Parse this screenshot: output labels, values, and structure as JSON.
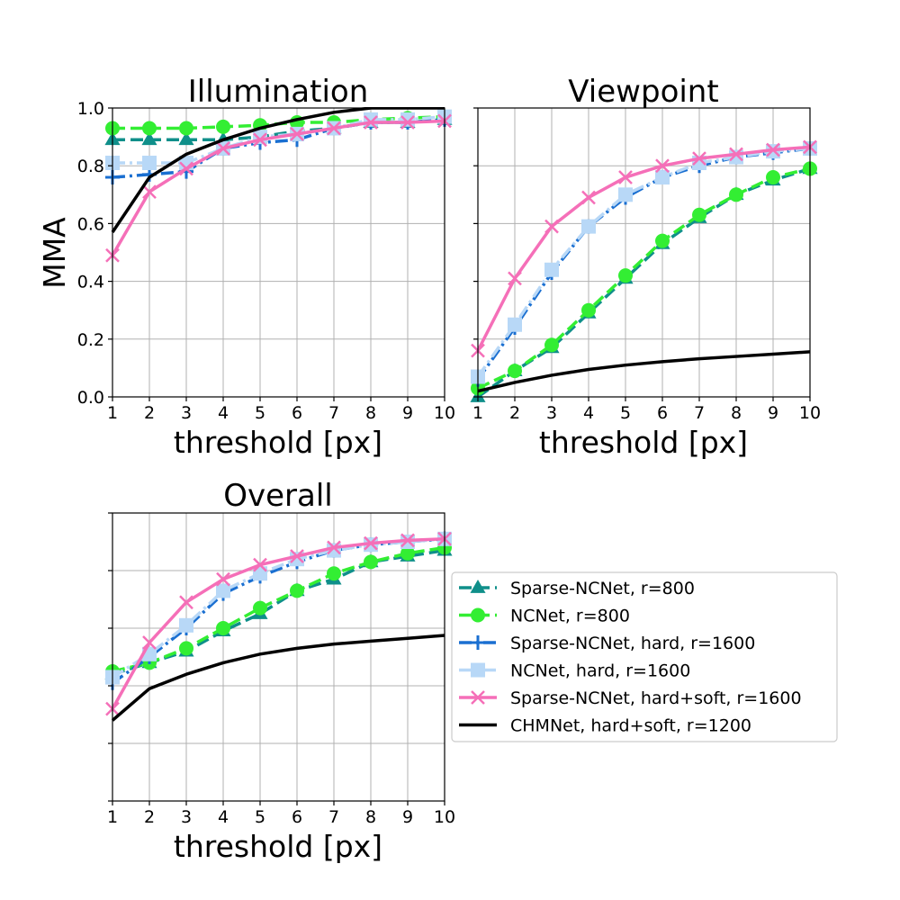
{
  "chart_data": {
    "type": "line",
    "xlabel": "threshold [px]",
    "ylabel": "MMA",
    "x": [
      1,
      2,
      3,
      4,
      5,
      6,
      7,
      8,
      9,
      10
    ],
    "xticks": [
      "1",
      "2",
      "3",
      "4",
      "5",
      "6",
      "7",
      "8",
      "9",
      "10"
    ],
    "yticks": [
      "0.0",
      "0.2",
      "0.4",
      "0.6",
      "0.8",
      "1.0"
    ],
    "xlim": [
      1,
      10
    ],
    "ylim": [
      0,
      1
    ],
    "grid": true,
    "legend_position": "right of Overall panel",
    "series_styles": [
      {
        "name": "Sparse-NCNet, r=800",
        "color": "#0f8f8a",
        "dash": "dashed",
        "marker": "triangle"
      },
      {
        "name": "NCNet, r=800",
        "color": "#33ee33",
        "dash": "dashed",
        "marker": "circle"
      },
      {
        "name": "Sparse-NCNet, hard, r=1600",
        "color": "#1a6fd1",
        "dash": "dashdot",
        "marker": "plus"
      },
      {
        "name": "NCNet, hard, r=1600",
        "color": "#b8d8f7",
        "dash": "dashdot",
        "marker": "square"
      },
      {
        "name": "Sparse-NCNet, hard+soft, r=1600",
        "color": "#f56fb8",
        "dash": "solid",
        "marker": "x"
      },
      {
        "name": "CHMNet, hard+soft, r=1200",
        "color": "#000000",
        "dash": "solid",
        "marker": "none"
      }
    ],
    "panels": [
      {
        "title": "Illumination",
        "series": [
          {
            "name": "Sparse-NCNet, r=800",
            "values": [
              0.89,
              0.89,
              0.89,
              0.89,
              0.9,
              0.92,
              0.93,
              0.95,
              0.95,
              0.96
            ]
          },
          {
            "name": "NCNet, r=800",
            "values": [
              0.93,
              0.93,
              0.93,
              0.935,
              0.94,
              0.95,
              0.95,
              0.96,
              0.965,
              0.97
            ]
          },
          {
            "name": "Sparse-NCNet, hard, r=1600",
            "values": [
              0.76,
              0.77,
              0.78,
              0.86,
              0.88,
              0.89,
              0.93,
              0.95,
              0.95,
              0.96
            ]
          },
          {
            "name": "NCNet, hard, r=1600",
            "values": [
              0.81,
              0.81,
              0.81,
              0.86,
              0.9,
              0.91,
              0.93,
              0.96,
              0.96,
              0.97
            ]
          },
          {
            "name": "Sparse-NCNet, hard+soft, r=1600",
            "values": [
              0.49,
              0.71,
              0.79,
              0.86,
              0.89,
              0.91,
              0.93,
              0.95,
              0.95,
              0.955
            ]
          },
          {
            "name": "CHMNet, hard+soft, r=1200",
            "values": [
              0.57,
              0.76,
              0.84,
              0.89,
              0.93,
              0.96,
              0.985,
              1.0,
              1.0,
              1.0
            ]
          }
        ]
      },
      {
        "title": "Viewpoint",
        "series": [
          {
            "name": "Sparse-NCNet, r=800",
            "values": [
              0.0,
              0.09,
              0.17,
              0.29,
              0.41,
              0.53,
              0.62,
              0.7,
              0.75,
              0.79
            ]
          },
          {
            "name": "NCNet, r=800",
            "values": [
              0.03,
              0.09,
              0.18,
              0.3,
              0.42,
              0.54,
              0.63,
              0.7,
              0.76,
              0.79
            ]
          },
          {
            "name": "Sparse-NCNet, hard, r=1600",
            "values": [
              0.06,
              0.24,
              0.43,
              0.59,
              0.69,
              0.76,
              0.8,
              0.83,
              0.845,
              0.86
            ]
          },
          {
            "name": "NCNet, hard, r=1600",
            "values": [
              0.07,
              0.25,
              0.44,
              0.59,
              0.7,
              0.76,
              0.81,
              0.83,
              0.85,
              0.86
            ]
          },
          {
            "name": "Sparse-NCNet, hard+soft, r=1600",
            "values": [
              0.16,
              0.41,
              0.59,
              0.69,
              0.76,
              0.8,
              0.825,
              0.84,
              0.855,
              0.865
            ]
          },
          {
            "name": "CHMNet, hard+soft, r=1200",
            "values": [
              0.02,
              0.05,
              0.075,
              0.095,
              0.11,
              0.122,
              0.132,
              0.14,
              0.148,
              0.156
            ]
          }
        ]
      },
      {
        "title": "Overall",
        "series": [
          {
            "name": "Sparse-NCNet, r=800",
            "values": [
              0.44,
              0.48,
              0.52,
              0.59,
              0.65,
              0.73,
              0.77,
              0.83,
              0.85,
              0.87
            ]
          },
          {
            "name": "NCNet, r=800",
            "values": [
              0.45,
              0.48,
              0.53,
              0.6,
              0.67,
              0.73,
              0.79,
              0.83,
              0.86,
              0.88
            ]
          },
          {
            "name": "Sparse-NCNet, hard, r=1600",
            "values": [
              0.41,
              0.5,
              0.6,
              0.72,
              0.78,
              0.83,
              0.87,
              0.89,
              0.9,
              0.91
            ]
          },
          {
            "name": "NCNet, hard, r=1600",
            "values": [
              0.43,
              0.51,
              0.61,
              0.73,
              0.79,
              0.84,
              0.87,
              0.89,
              0.9,
              0.91
            ]
          },
          {
            "name": "Sparse-NCNet, hard+soft, r=1600",
            "values": [
              0.32,
              0.55,
              0.69,
              0.77,
              0.82,
              0.85,
              0.88,
              0.895,
              0.905,
              0.91
            ]
          },
          {
            "name": "CHMNet, hard+soft, r=1200",
            "values": [
              0.28,
              0.39,
              0.44,
              0.48,
              0.51,
              0.53,
              0.545,
              0.555,
              0.565,
              0.575
            ]
          }
        ]
      }
    ]
  }
}
